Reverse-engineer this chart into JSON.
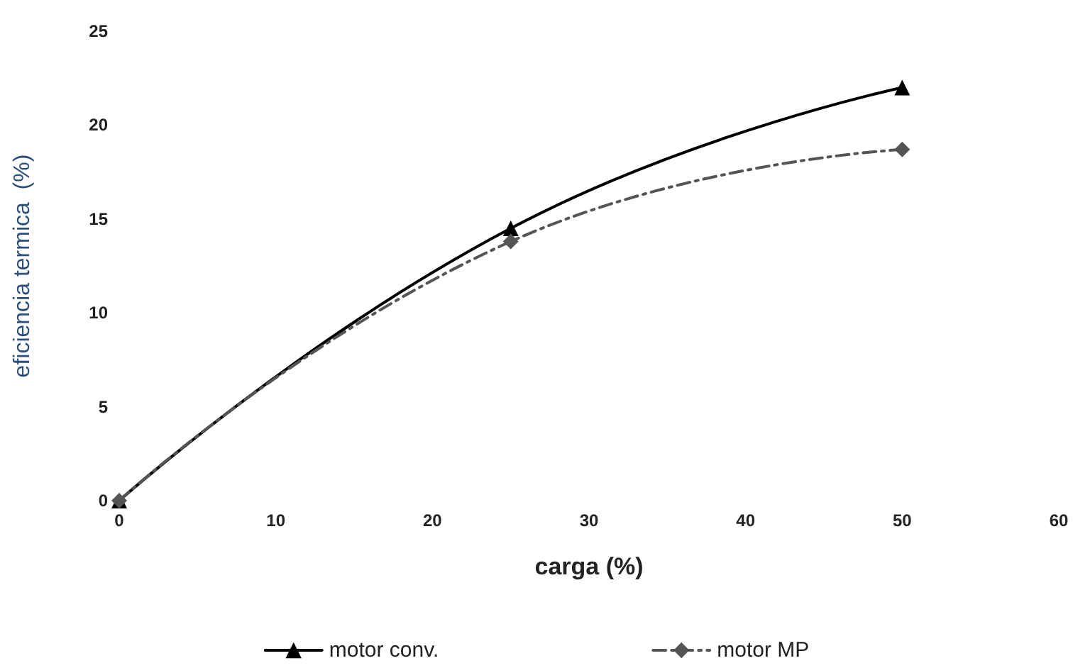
{
  "chart_data": {
    "type": "line",
    "xlabel": "carga (%)",
    "ylabel": "eficiencia termica  (%)",
    "xlim": [
      0,
      60
    ],
    "xticks": [
      0,
      10,
      20,
      30,
      40,
      50,
      60
    ],
    "ylim": [
      0,
      25
    ],
    "yticks": [
      0,
      5,
      10,
      15,
      20,
      25
    ],
    "grid": false,
    "legend": "bottom",
    "series": [
      {
        "name": "motor conv.",
        "color": "#000000",
        "x": [
          0,
          25,
          50
        ],
        "values": [
          0,
          14.5,
          22
        ],
        "marker": "triangle",
        "line_style": "solid"
      },
      {
        "name": "motor MP",
        "color": "#555555",
        "x": [
          0,
          25,
          50
        ],
        "values": [
          0,
          13.8,
          18.7
        ],
        "marker": "diamond",
        "line_style": "dashed"
      }
    ]
  }
}
